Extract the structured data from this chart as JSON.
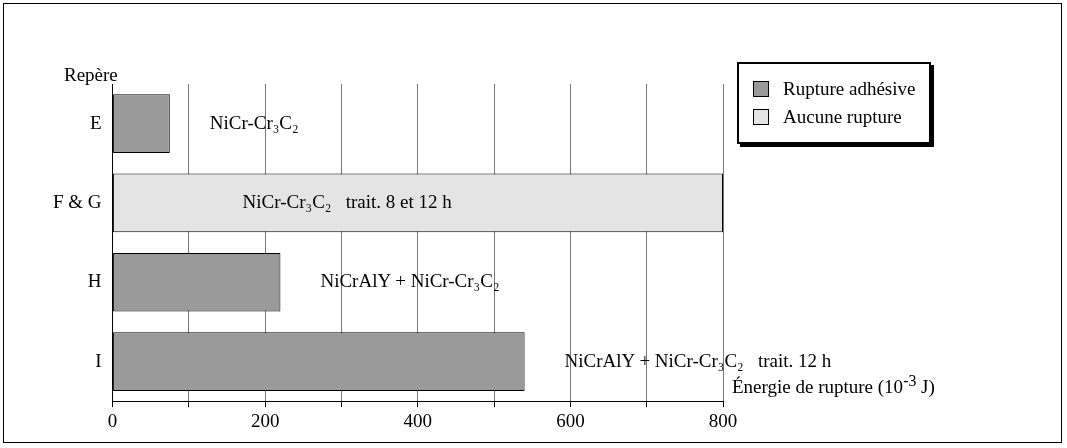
{
  "chart_data": {
    "type": "bar",
    "orientation": "horizontal",
    "ylabel": "Repère",
    "xlabel": "Énergie de rupture (10$^{-3}$ J)",
    "categories": [
      "E",
      "F & G",
      "H",
      "I"
    ],
    "series": [
      {
        "name": "Rupture adhésive",
        "color": "#9a9a9a",
        "values": [
          75,
          null,
          220,
          540
        ]
      },
      {
        "name": "Aucune rupture",
        "color": "#e4e4e4",
        "values": [
          null,
          800,
          null,
          null
        ]
      }
    ],
    "xlim": [
      0,
      800
    ],
    "xticks": [
      0,
      {
        "value": 100,
        "label": null
      },
      200,
      {
        "value": 300,
        "label": null
      },
      400,
      {
        "value": 500,
        "label": null
      },
      600,
      {
        "value": 700,
        "label": null
      },
      800
    ],
    "grid": "x",
    "legend": "top right",
    "annotations": [
      "NiCr-Cr₃C₂",
      "NiCr-Cr₃C₂   trait. 8 et 12 h",
      "NiCrAlY + NiCr-Cr₃C₂",
      "NiCrAlY + NiCr-Cr₃C₂   trait. 12 h"
    ]
  }
}
